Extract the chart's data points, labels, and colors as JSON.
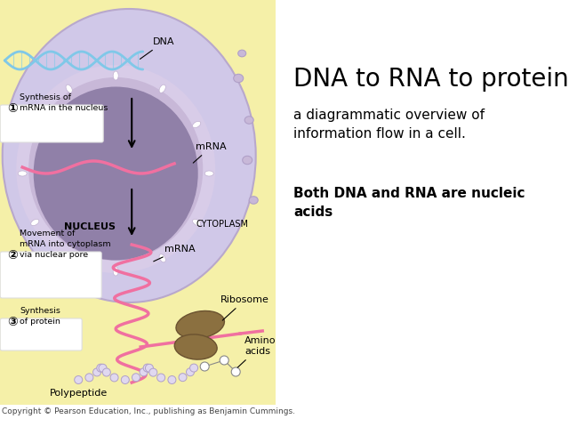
{
  "title": "DNA to RNA to protein:",
  "subtitle": "a diagrammatic overview of\ninformation flow in a cell.",
  "bold_text": "Both DNA and RNA are nucleic\nacids",
  "copyright": "Copyright © Pearson Education, Inc., publishing as Benjamin Cummings.",
  "bg_color": "#ffffff",
  "cytoplasm_color": "#f5f0a8",
  "cell_outer_color": "#d0c8e8",
  "nucleus_inner_color": "#9080a8",
  "dna_color": "#80c8e8",
  "mrna_color": "#f070a0",
  "ribosome_color": "#8b7040",
  "polypeptide_color": "#e0d8f0",
  "title_fontsize": 20,
  "subtitle_fontsize": 11,
  "bold_fontsize": 11,
  "copyright_fontsize": 6.5
}
